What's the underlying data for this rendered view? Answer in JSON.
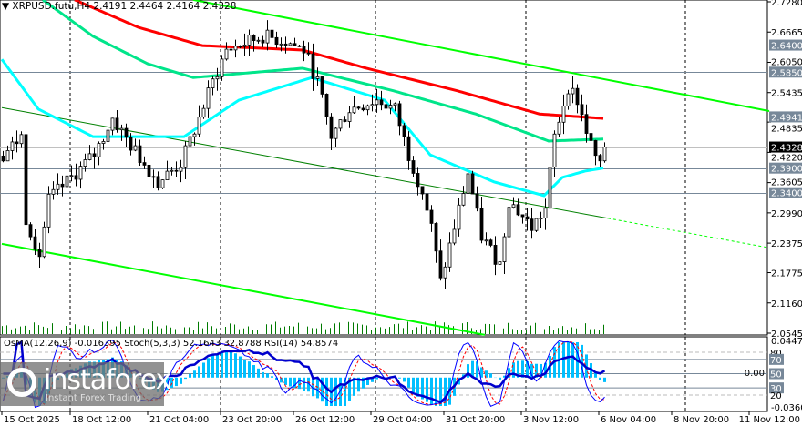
{
  "header": {
    "symbol": "XRPUSD.futu,H4",
    "ohlc": "2.4191 2.4464 2.4164 2.4328"
  },
  "indicator_header": "OsMA(12,26,9) -0.016395  Stoch(5,3,3) 52.1643 32.8788  RSI(14) 54.8574",
  "logo": {
    "name": "instaforex",
    "tagline": "Instant Forex Trading"
  },
  "colors": {
    "ma_red": "#ff0000",
    "ma_green": "#00e58a",
    "ma_cyan": "#00ffff",
    "trend": "#00ff00",
    "channel_mid": "#008000",
    "osma": "#00bfff",
    "rsi": "#0000cd",
    "stoch_main": "#0000ff",
    "stoch_signal": "#ff0000",
    "level_box": "#778899"
  },
  "chart_data": {
    "type": "candlestick",
    "price_range": [
      2.0545,
      2.728
    ],
    "price_ticks": [
      "2.7280",
      "2.6665",
      "2.6050",
      "2.5435",
      "2.4835",
      "2.4220",
      "2.3605",
      "2.2990",
      "2.2375",
      "2.1775",
      "2.1160",
      "2.0545"
    ],
    "levels": [
      {
        "label": "2.6400",
        "price": 2.64,
        "current": false
      },
      {
        "label": "2.5850",
        "price": 2.585,
        "current": false
      },
      {
        "label": "2.4941",
        "price": 2.4941,
        "current": false
      },
      {
        "label": "2.4328",
        "price": 2.4328,
        "current": true
      },
      {
        "label": "2.3900",
        "price": 2.39,
        "current": false
      },
      {
        "label": "2.3400",
        "price": 2.34,
        "current": false
      }
    ],
    "time_labels": [
      {
        "label": "15 Oct 2025",
        "index": 0
      },
      {
        "label": "18 Oct 12:00",
        "index": 15
      },
      {
        "label": "21 Oct 04:00",
        "index": 32
      },
      {
        "label": "23 Oct 20:00",
        "index": 48
      },
      {
        "label": "26 Oct 12:00",
        "index": 64
      },
      {
        "label": "29 Oct 04:00",
        "index": 81
      },
      {
        "label": "31 Oct 20:00",
        "index": 97
      },
      {
        "label": "3 Nov 12:00",
        "index": 114
      },
      {
        "label": "6 Nov 04:00",
        "index": 131
      },
      {
        "label": "8 Nov 20:00",
        "index": 147
      },
      {
        "label": "11 Nov 12:00",
        "index": 164
      }
    ],
    "separators": [
      15,
      48,
      82,
      115,
      150
    ],
    "close_anchors": [
      [
        0,
        2.417
      ],
      [
        4,
        2.454
      ],
      [
        5,
        2.288
      ],
      [
        8,
        2.214
      ],
      [
        10,
        2.325
      ],
      [
        16,
        2.38
      ],
      [
        20,
        2.417
      ],
      [
        24,
        2.491
      ],
      [
        28,
        2.436
      ],
      [
        34,
        2.362
      ],
      [
        39,
        2.399
      ],
      [
        43,
        2.491
      ],
      [
        46,
        2.565
      ],
      [
        49,
        2.63
      ],
      [
        57,
        2.658
      ],
      [
        62,
        2.648
      ],
      [
        66,
        2.63
      ],
      [
        69,
        2.565
      ],
      [
        72,
        2.454
      ],
      [
        76,
        2.51
      ],
      [
        82,
        2.528
      ],
      [
        86,
        2.51
      ],
      [
        89,
        2.417
      ],
      [
        92,
        2.343
      ],
      [
        94,
        2.269
      ],
      [
        96,
        2.158
      ],
      [
        98,
        2.232
      ],
      [
        102,
        2.38
      ],
      [
        105,
        2.251
      ],
      [
        109,
        2.195
      ],
      [
        111,
        2.325
      ],
      [
        116,
        2.269
      ],
      [
        119,
        2.306
      ],
      [
        121,
        2.454
      ],
      [
        124,
        2.556
      ],
      [
        126,
        2.528
      ],
      [
        129,
        2.436
      ],
      [
        131,
        2.39
      ],
      [
        132,
        2.4328
      ]
    ],
    "ma_red": [
      [
        16,
        2.732
      ],
      [
        30,
        2.676
      ],
      [
        44,
        2.639
      ],
      [
        66,
        2.63
      ],
      [
        80,
        2.593
      ],
      [
        100,
        2.547
      ],
      [
        118,
        2.5
      ],
      [
        132,
        2.491
      ]
    ],
    "ma_green": [
      [
        9,
        2.732
      ],
      [
        20,
        2.658
      ],
      [
        32,
        2.602
      ],
      [
        42,
        2.574
      ],
      [
        66,
        2.593
      ],
      [
        86,
        2.547
      ],
      [
        104,
        2.5
      ],
      [
        120,
        2.445
      ],
      [
        132,
        2.449
      ]
    ],
    "ma_cyan": [
      [
        0,
        2.611
      ],
      [
        8,
        2.51
      ],
      [
        20,
        2.454
      ],
      [
        40,
        2.454
      ],
      [
        52,
        2.528
      ],
      [
        68,
        2.574
      ],
      [
        84,
        2.528
      ],
      [
        94,
        2.417
      ],
      [
        108,
        2.362
      ],
      [
        119,
        2.334
      ],
      [
        123,
        2.371
      ],
      [
        128,
        2.384
      ],
      [
        132,
        2.39
      ]
    ],
    "trend_top": [
      [
        42,
        2.732
      ],
      [
        168.4,
        2.506
      ]
    ],
    "trend_bottom": [
      [
        0,
        2.236
      ],
      [
        106,
        2.051
      ]
    ],
    "channel_mid": [
      [
        0,
        2.513
      ],
      [
        133,
        2.288
      ]
    ],
    "channel_mid_ext": [
      [
        133,
        2.288
      ],
      [
        168.4,
        2.228
      ]
    ],
    "indicator": {
      "osma_range": [
        -0.036,
        0.044735
      ],
      "osc_levels": [
        80,
        70,
        50,
        30,
        20
      ],
      "osma_ticks": [
        "0.044735",
        "0.00",
        "-0.036000"
      ]
    }
  }
}
